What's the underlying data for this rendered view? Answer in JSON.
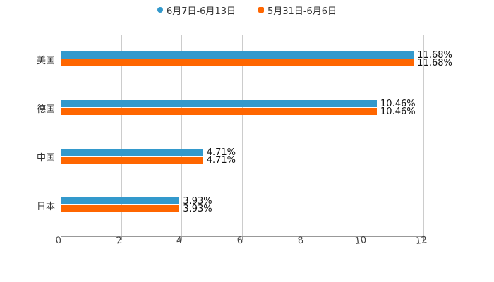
{
  "chart_data": {
    "type": "bar",
    "orientation": "horizontal",
    "title": "",
    "xlabel": "",
    "ylabel": "",
    "categories": [
      "美国",
      "德国",
      "中国",
      "日本"
    ],
    "series": [
      {
        "name": "6月7日-6月13日",
        "color": "#3399cc",
        "values": [
          11.68,
          10.46,
          4.71,
          3.93
        ],
        "labels": [
          "11.68%",
          "10.46%",
          "4.71%",
          "3.93%"
        ]
      },
      {
        "name": "5月31日-6月6日",
        "color": "#ff6600",
        "values": [
          11.68,
          10.46,
          4.71,
          3.93
        ],
        "labels": [
          "11.68%",
          "10.46%",
          "4.71%",
          "3.93%"
        ]
      }
    ],
    "xlim": [
      0,
      12
    ],
    "xticks": [
      "0",
      "2",
      "4",
      "6",
      "8",
      "10",
      "12"
    ],
    "grid": "vertical",
    "legend_position": "top"
  },
  "legend": [
    {
      "label": "6月7日-6月13日",
      "color": "#3399cc",
      "shape": "circle"
    },
    {
      "label": "5月31日-6月6日",
      "color": "#ff6600",
      "shape": "square"
    }
  ]
}
